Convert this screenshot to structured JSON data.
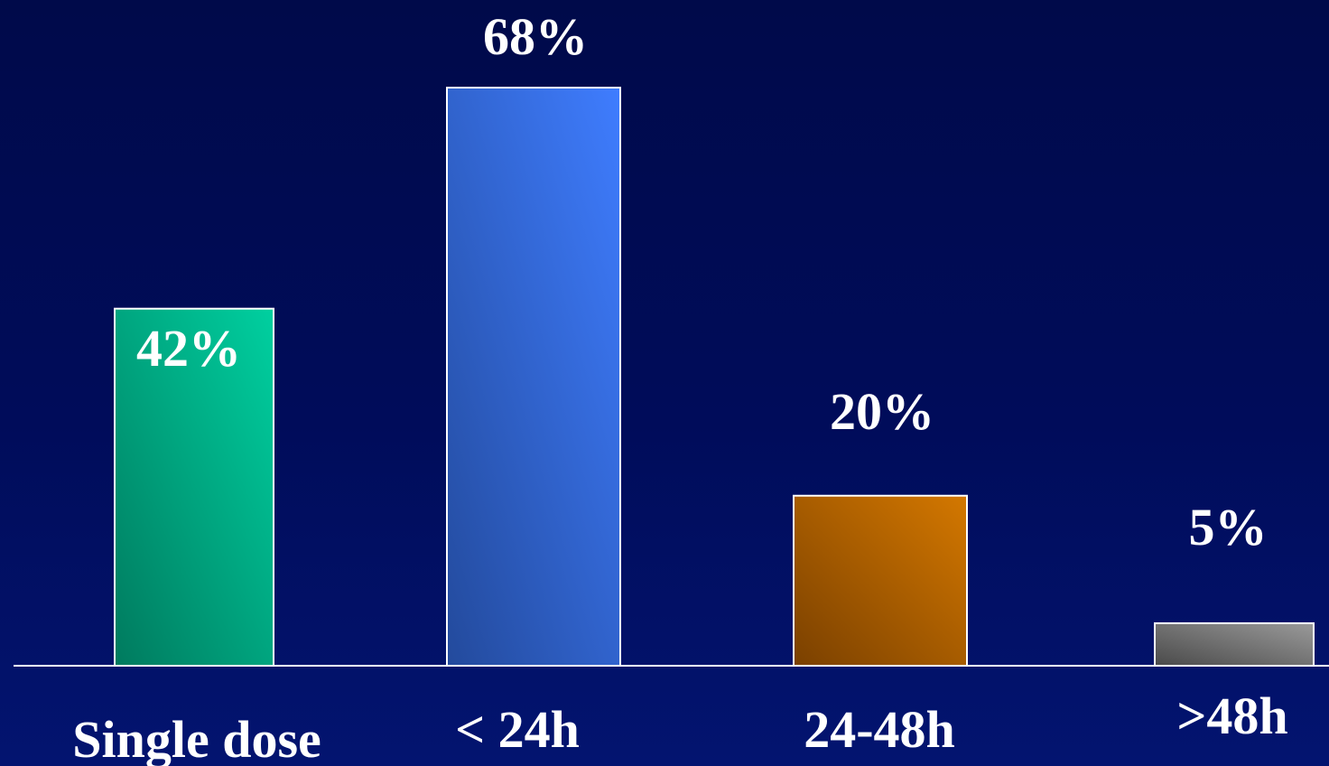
{
  "chart_data": {
    "type": "bar",
    "categories": [
      "Single dose",
      "< 24h",
      "24-48h",
      ">48h"
    ],
    "values": [
      42,
      68,
      20,
      5
    ],
    "data_labels": [
      "42%",
      "68%",
      "20%",
      "5%"
    ],
    "title": "",
    "xlabel": "",
    "ylabel": "",
    "ylim": [
      0,
      68
    ],
    "grid": false,
    "legend": "none",
    "colors": {
      "background": "#000c5a",
      "bar_gradients": [
        [
          "#007a5e",
          "#00d0a0"
        ],
        [
          "#234a9c",
          "#3f7dff"
        ],
        [
          "#7a4000",
          "#d47800"
        ],
        [
          "#4a4a4a",
          "#9a9a9a"
        ]
      ],
      "bar_stroke": "#ffffff",
      "axis": "#ffffff"
    }
  }
}
